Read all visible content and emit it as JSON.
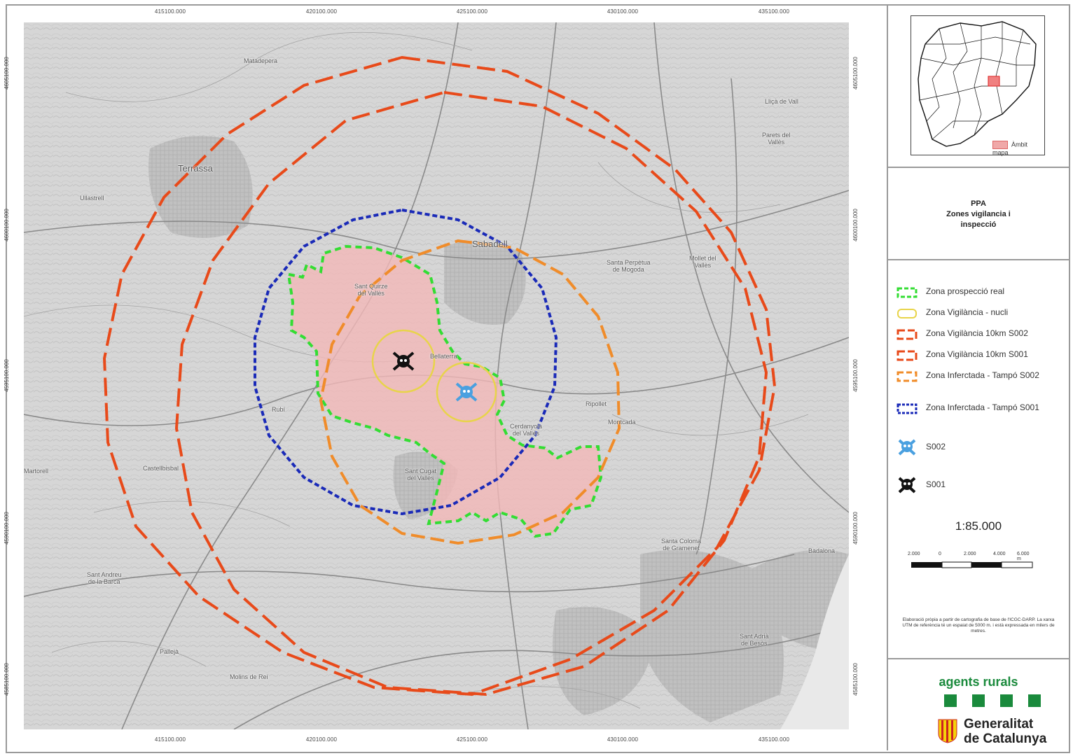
{
  "map": {
    "coords_x": [
      "415100.000",
      "420100.000",
      "425100.000",
      "430100.000",
      "435100.000"
    ],
    "coords_y": [
      "4605100.000",
      "4600100.000",
      "4595100.000",
      "4590100.000",
      "4585100.000"
    ],
    "places": [
      {
        "name": "Terrassa",
        "big": true
      },
      {
        "name": "Matadepera"
      },
      {
        "name": "Sabadell"
      },
      {
        "name": "Sant Quirze\ndel Vallès"
      },
      {
        "name": "Santa Perpètua\nde Mogoda"
      },
      {
        "name": "Mollet del\nVallès"
      },
      {
        "name": "Lliçà de Vall"
      },
      {
        "name": "Parets del\nVallès"
      },
      {
        "name": "Montcada"
      },
      {
        "name": "Ripollet"
      },
      {
        "name": "Cerdanyola\ndel Vallès"
      },
      {
        "name": "Sant Cugat\ndel Vallès"
      },
      {
        "name": "Bellaterra"
      },
      {
        "name": "Rubí"
      },
      {
        "name": "Castellbisbal"
      },
      {
        "name": "Martorell"
      },
      {
        "name": "Santa Coloma\nde Gramenet"
      },
      {
        "name": "Badalona"
      },
      {
        "name": "Sant Andreu\nde la Barca"
      },
      {
        "name": "Pallejà"
      },
      {
        "name": "Molins de Rei"
      },
      {
        "name": "Sant Adrià\nde Besòs"
      },
      {
        "name": "Ullastrell"
      }
    ]
  },
  "locator": {
    "legend": "Àmbit mapa"
  },
  "title": {
    "line1": "PPA",
    "line2": "Zones vigilancia i",
    "line3": "inspecció"
  },
  "legend": [
    {
      "label": "Zona prospecció real",
      "color": "#33dd33",
      "style": "dash"
    },
    {
      "label": "Zona Vigilància - nucli",
      "color": "#e8d44a",
      "style": "solid"
    },
    {
      "label": "Zona Vigilància 10km S002",
      "color": "#e84a1a",
      "style": "dash"
    },
    {
      "label": "Zona Vigilància 10km S001",
      "color": "#e84a1a",
      "style": "dash"
    },
    {
      "label": "Zona Inferctada - Tampó S002",
      "color": "#f08c2a",
      "style": "dash"
    },
    {
      "label": "Zona Inferctada - Tampó S001",
      "color": "#1a2ab8",
      "style": "dash"
    },
    {
      "label": "S002",
      "icon": "skull-blue"
    },
    {
      "label": "S001",
      "icon": "skull-black"
    }
  ],
  "scale": {
    "ratio": "1:85.000",
    "ticks": [
      "2.000",
      "0",
      "2.000",
      "4.000",
      "6.000 m"
    ]
  },
  "credits": "Elaboració pròpia a partir de cartografia de base de l'ICGC-DARP. La xarxa UTM de referència té un espaiat de 5000 m. i està expressada en milers de metres.",
  "logos": {
    "agents": "agents rurals",
    "generalitat_line1": "Generalitat",
    "generalitat_line2": "de Catalunya"
  },
  "colors": {
    "prospection": "#33dd33",
    "nucleus": "#e8d44a",
    "vig10km": "#e84a1a",
    "buffer_s002": "#f08c2a",
    "buffer_s001": "#1a2ab8",
    "infected_fill": "#f2b8b8",
    "s002": "#4aa0e0",
    "s001": "#111111",
    "brand_green": "#1a8a3c"
  }
}
